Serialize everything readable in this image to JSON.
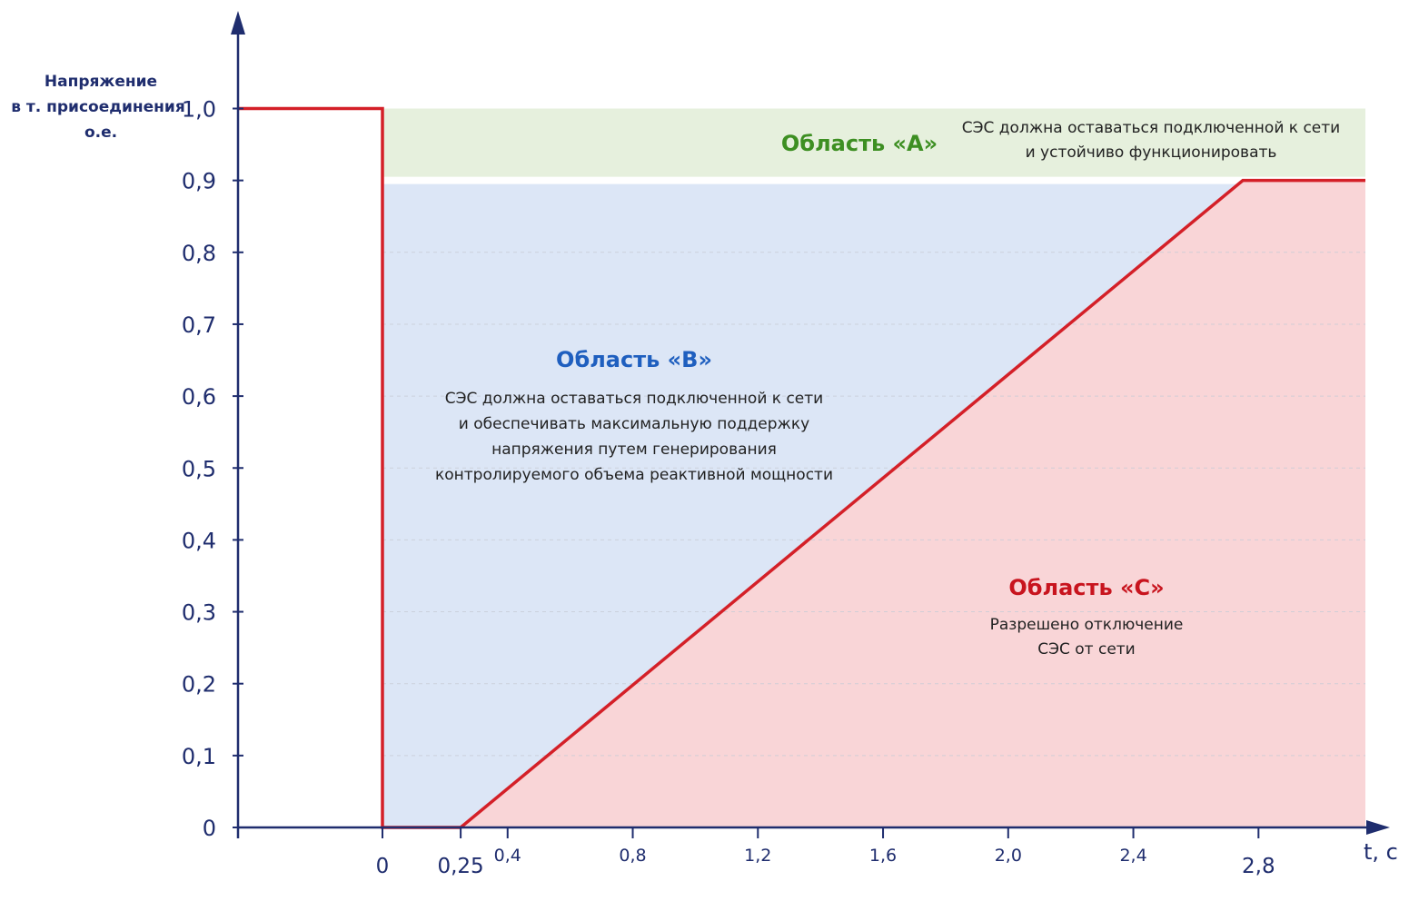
{
  "chart_data": {
    "type": "line",
    "ylabel": [
      "Напряжение",
      "в т. присоединения",
      "о.е."
    ],
    "xlabel": "t, с",
    "y_ticks": [
      "0",
      "0,1",
      "0,2",
      "0,3",
      "0,4",
      "0,5",
      "0,6",
      "0,7",
      "0,8",
      "0,9",
      "1,0"
    ],
    "y_tick_values": [
      0,
      0.1,
      0.2,
      0.3,
      0.4,
      0.5,
      0.6,
      0.7,
      0.8,
      0.9,
      1.0
    ],
    "x_ticks_small": [
      "0,4",
      "0,8",
      "1,2",
      "1,6",
      "2,0",
      "2,4"
    ],
    "x_ticks_small_values": [
      0.4,
      0.8,
      1.2,
      1.6,
      2.0,
      2.4
    ],
    "x_ticks_large": [
      "0",
      "0,25",
      "2,8"
    ],
    "x_ticks_large_values": [
      0,
      0.25,
      2.8
    ],
    "xlim": [
      -0.45,
      3.0
    ],
    "ylim": [
      0,
      1.05
    ],
    "boundary": {
      "x": [
        -0.45,
        0,
        0,
        0.25,
        2.75,
        3.0
      ],
      "y": [
        1.0,
        1.0,
        0,
        0,
        0.9,
        0.9
      ]
    },
    "regions": {
      "A": {
        "title": "Область «А»",
        "text": [
          "СЭС должна оставаться подключенной к сети",
          "и устойчиво функционировать"
        ],
        "color": "#e6f0dd",
        "title_color": "#3d8f22"
      },
      "B": {
        "title": "Область «В»",
        "text": [
          "СЭС должна оставаться подключенной к сети",
          "и обеспечивать максимальную поддержку",
          "напряжения путем генерирования",
          "контролируемого объема реактивной мощности"
        ],
        "color": "#dce6f6",
        "title_color": "#1f5fbf"
      },
      "C": {
        "title": "Область «С»",
        "text": [
          "Разрешено отключение",
          "СЭС от сети"
        ],
        "color": "#f9d5d7",
        "title_color": "#c8141e"
      }
    },
    "colors": {
      "axis": "#1f2d6e",
      "boundary": "#d42028",
      "grid": "#c8ccd6"
    },
    "grid": true,
    "legend": "none"
  }
}
